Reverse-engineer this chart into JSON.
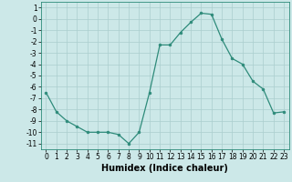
{
  "x": [
    0,
    1,
    2,
    3,
    4,
    5,
    6,
    7,
    8,
    9,
    10,
    11,
    12,
    13,
    14,
    15,
    16,
    17,
    18,
    19,
    20,
    21,
    22,
    23
  ],
  "y": [
    -6.5,
    -8.2,
    -9.0,
    -9.5,
    -10.0,
    -10.0,
    -10.0,
    -10.2,
    -11.0,
    -10.0,
    -6.5,
    -2.3,
    -2.3,
    -1.2,
    -0.3,
    0.5,
    0.4,
    -1.8,
    -3.5,
    -4.0,
    -5.5,
    -6.2,
    -8.3,
    -8.2
  ],
  "xlabel": "Humidex (Indice chaleur)",
  "xlim": [
    -0.5,
    23.5
  ],
  "ylim": [
    -11.5,
    1.5
  ],
  "yticks": [
    1,
    0,
    -1,
    -2,
    -3,
    -4,
    -5,
    -6,
    -7,
    -8,
    -9,
    -10,
    -11
  ],
  "xticks": [
    0,
    1,
    2,
    3,
    4,
    5,
    6,
    7,
    8,
    9,
    10,
    11,
    12,
    13,
    14,
    15,
    16,
    17,
    18,
    19,
    20,
    21,
    22,
    23
  ],
  "line_color": "#2e8b7a",
  "marker_color": "#2e8b7a",
  "bg_color": "#cce8e8",
  "grid_color": "#aacece",
  "tick_label_fontsize": 5.5,
  "xlabel_fontsize": 7.0,
  "marker_size": 2.0,
  "linewidth": 0.9
}
